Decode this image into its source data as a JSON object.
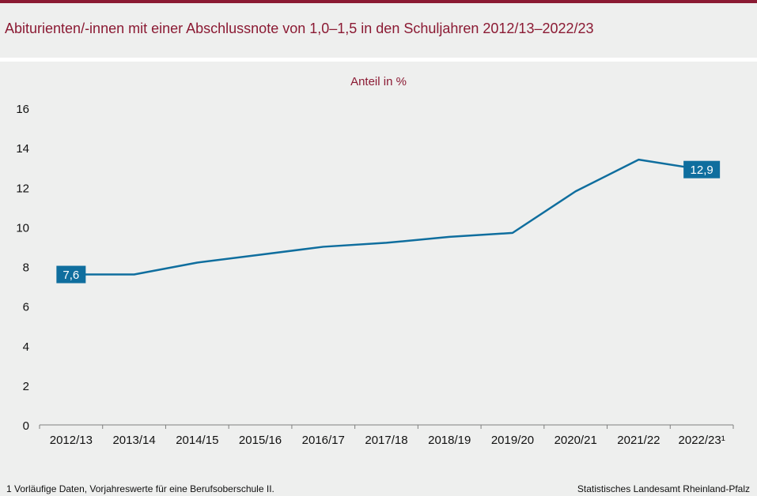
{
  "title": "Abiturienten/-innen mit einer Abschlussnote von 1,0–1,5 in den Schuljahren 2012/13–2022/23",
  "colors": {
    "brand": "#8b1a33",
    "line": "#0f6e9e",
    "axis": "#7f7f7f"
  },
  "chart_data": {
    "type": "line",
    "ylabel": "Anteil in %",
    "categories": [
      "2012/13",
      "2013/14",
      "2014/15",
      "2015/16",
      "2016/17",
      "2017/18",
      "2018/19",
      "2019/20",
      "2020/21",
      "2021/22",
      "2022/23¹"
    ],
    "series": [
      {
        "values": [
          7.6,
          7.6,
          8.2,
          8.6,
          9.0,
          9.2,
          9.5,
          9.7,
          11.8,
          13.4,
          12.9
        ]
      }
    ],
    "value_labels": [
      {
        "index": 0,
        "text": "7,6"
      },
      {
        "index": 10,
        "text": "12,9"
      }
    ],
    "ylim": [
      0,
      16
    ],
    "yticks": [
      "0",
      "2",
      "4",
      "6",
      "8",
      "10",
      "12",
      "14",
      "16"
    ],
    "grid": false,
    "legend": "none"
  },
  "footnote": "1 Vorläufige Daten, Vorjahreswerte für eine Berufsoberschule II.",
  "source": "Statistisches Landesamt Rheinland-Pfalz"
}
